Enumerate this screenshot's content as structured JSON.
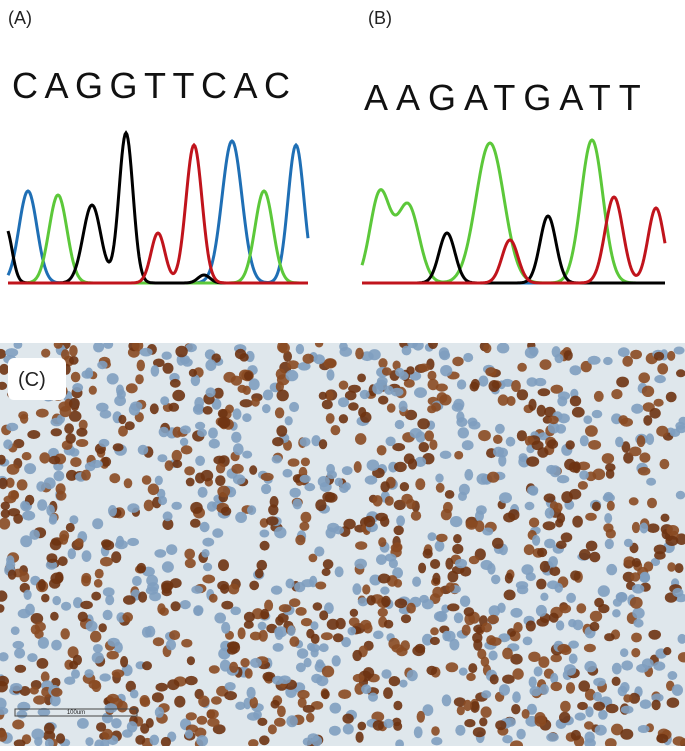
{
  "panel_a": {
    "label": "(A)",
    "sequence": "CAGGTTCAC"
  },
  "panel_b": {
    "label": "(B)",
    "sequence": "AAGATGATT"
  },
  "panel_c": {
    "label": "(C)",
    "scale_bar": "100um"
  }
}
